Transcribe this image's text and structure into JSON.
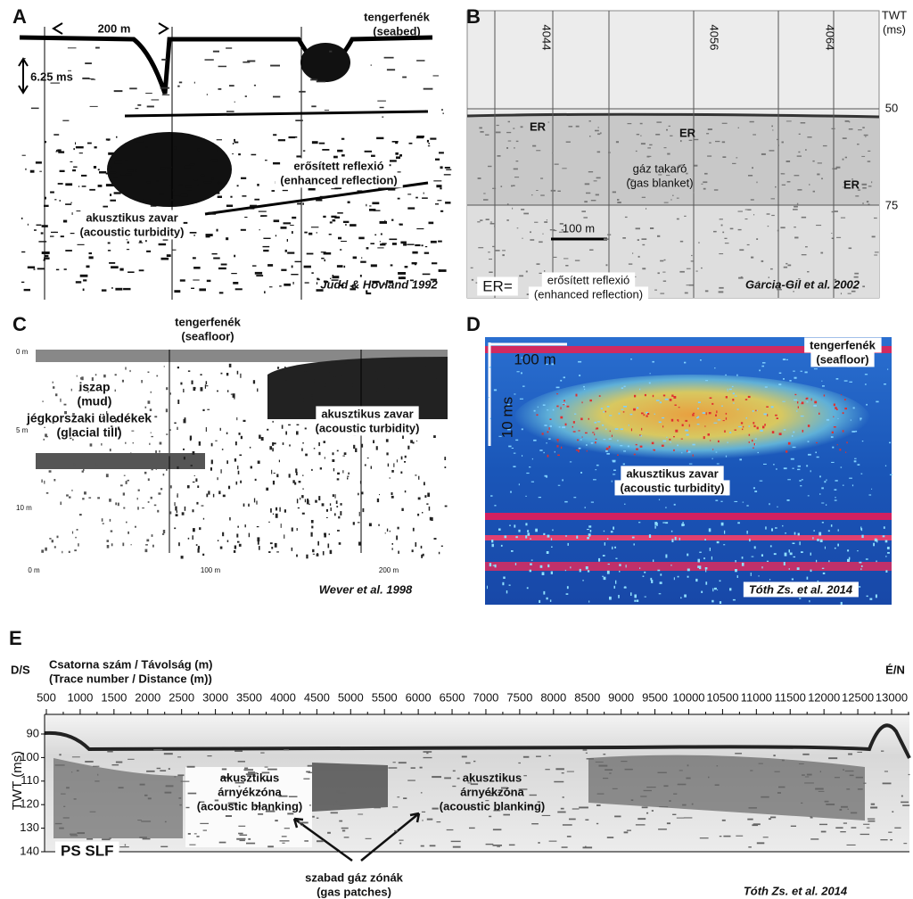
{
  "panel_a": {
    "label": "A",
    "scale": "200 m",
    "seabed": [
      "tengerfenék",
      "(seabed)"
    ],
    "depth": "6.25 ms",
    "reflection": [
      "erősített reflexió",
      "(enhanced reflection)"
    ],
    "turbidity": [
      "akusztikus zavar",
      "(acoustic turbidity)"
    ],
    "source": "Judd & Hovland 1992"
  },
  "panel_b": {
    "label": "B",
    "axis_title": [
      "TWT",
      "(ms)"
    ],
    "y_ticks": [
      50,
      75
    ],
    "traces": [
      4044,
      4056,
      4064
    ],
    "er_markers": [
      "ER",
      "ER",
      "ER"
    ],
    "blanket": [
      "gáz takaró",
      "(gas blanket)"
    ],
    "scale": "100 m",
    "legend_key": "ER=",
    "legend": [
      "erősített reflexió",
      "(enhanced reflection)"
    ],
    "source": "Garcia-Gil et al. 2002"
  },
  "panel_c": {
    "label": "C",
    "seafloor": [
      "tengerfenék",
      "(seafloor)"
    ],
    "depth_ticks": [
      "0 m",
      "5 m",
      "10 m"
    ],
    "mud": [
      "iszap",
      "(mud)"
    ],
    "till": [
      "jégkorszaki üledékek",
      "(glacial till)"
    ],
    "turbidity": [
      "akusztikus zavar",
      "(acoustic turbidity)"
    ],
    "distance_ticks": [
      "0 m",
      "100 m",
      "200 m"
    ],
    "source": "Wever et al. 1998"
  },
  "panel_d": {
    "label": "D",
    "scale_h": "100 m",
    "scale_v": "10 ms",
    "seafloor": [
      "tengerfenék",
      "(seafloor)"
    ],
    "turbidity": [
      "akusztikus zavar",
      "(acoustic turbidity)"
    ],
    "source": "Tóth Zs. et al. 2014"
  },
  "panel_e": {
    "label": "E",
    "start": "D/S",
    "end": "É/N",
    "axis_title": [
      "Csatorna szám / Távolság (m)",
      "(Trace number / Distance (m))"
    ],
    "x_ticks": [
      500,
      1000,
      1500,
      2000,
      2500,
      3000,
      3500,
      4000,
      4500,
      5000,
      5500,
      6000,
      6500,
      7000,
      7500,
      8000,
      8500,
      9000,
      9500,
      10000,
      10500,
      11000,
      11500,
      12000,
      12500,
      13000
    ],
    "y_title": "TWT (ms)",
    "y_ticks": [
      90,
      100,
      110,
      120,
      130,
      140
    ],
    "line_name": "PS SLF",
    "blanking_1": [
      "akusztikus",
      "árnyékzóna",
      "(acoustic blanking)"
    ],
    "blanking_2": [
      "akusztikus",
      "árnyékzóna",
      "(acoustic blanking)"
    ],
    "gas": [
      "szabad gáz zónák",
      "(gas patches)"
    ],
    "source": "Tóth Zs. et al. 2014"
  }
}
